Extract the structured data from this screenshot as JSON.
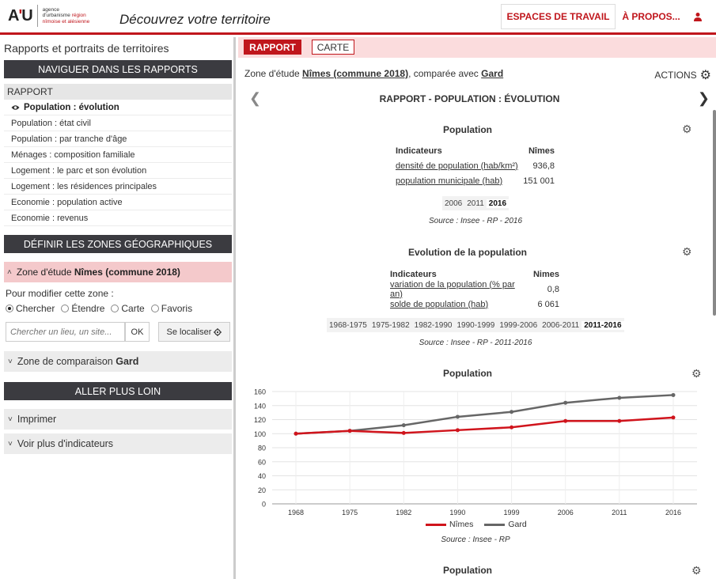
{
  "header": {
    "logo_mark_a": "A",
    "logo_mark_apos": "'",
    "logo_mark_u": "U",
    "logo_line1": "agence",
    "logo_line2_a": "d'urbanisme",
    "logo_line2_b": "région",
    "logo_line3": "nîmoise et alésienne",
    "app_title": "Découvrez votre territoire",
    "nav_espaces": "ESPACES DE TRAVAIL",
    "nav_apropos": "À PROPOS...",
    "user_icon": "user-icon",
    "accent": "#c0161c"
  },
  "sidebar": {
    "title": "Rapports et portraits de territoires",
    "nav_heading": "NAVIGUER DANS LES RAPPORTS",
    "rapport_head": "RAPPORT",
    "items": [
      {
        "label": "Population : évolution",
        "active": true
      },
      {
        "label": "Population : état civil"
      },
      {
        "label": "Population : par tranche d'âge"
      },
      {
        "label": "Ménages : composition familiale"
      },
      {
        "label": "Logement : le parc et son évolution"
      },
      {
        "label": "Logement : les résidences principales"
      },
      {
        "label": "Economie : population active"
      },
      {
        "label": "Economie : revenus"
      }
    ],
    "zones_heading": "DÉFINIR LES ZONES GÉOGRAPHIQUES",
    "zone_etude_prefix": "Zone d'étude",
    "zone_etude_name": "Nîmes (commune 2018)",
    "modif_label": "Pour modifier cette zone :",
    "radios": [
      "Chercher",
      "Étendre",
      "Carte",
      "Favoris"
    ],
    "search_placeholder": "Chercher un lieu, un site...",
    "ok_label": "OK",
    "locate_label": "Se localiser",
    "zone_comp_prefix": "Zone de comparaison",
    "zone_comp_name": "Gard",
    "aller_heading": "ALLER PLUS LOIN",
    "imprimer": "Imprimer",
    "voir_plus": "Voir plus d'indicateurs"
  },
  "main": {
    "tab_rapport": "RAPPORT",
    "tab_carte": "CARTE",
    "zone_prefix": "Zone d'étude",
    "zone_name": "Nîmes (commune 2018)",
    "zone_mid": ", comparée avec",
    "comp_name": "Gard",
    "actions": "ACTIONS",
    "report_title": "RAPPORT - POPULATION : ÉVOLUTION",
    "sec1": {
      "title": "Population",
      "col_ind": "Indicateurs",
      "col_val": "Nîmes",
      "rows": [
        {
          "label": "densité de population (hab/km²)",
          "value": "936,8"
        },
        {
          "label": "population municipale (hab)",
          "value": "151 001"
        }
      ],
      "years": [
        "2006",
        "2011",
        "2016"
      ],
      "selected_year": "2016",
      "source": "Source : Insee - RP - 2016"
    },
    "sec2": {
      "title": "Evolution de la population",
      "col_ind": "Indicateurs",
      "col_val": "Nimes",
      "rows": [
        {
          "label": "variation de la population (% par an)",
          "value": "0,8"
        },
        {
          "label": "solde de population (hab)",
          "value": "6 061"
        }
      ],
      "periods": [
        "1968-1975",
        "1975-1982",
        "1982-1990",
        "1990-1999",
        "1999-2006",
        "2006-2011",
        "2011-2016"
      ],
      "selected_period": "2011-2016",
      "source": "Source : Insee - RP - 2011-2016"
    },
    "sec3": {
      "title": "Population",
      "source": "Source : Insee - RP"
    },
    "sec4": {
      "title": "Population"
    }
  },
  "chart_data": {
    "type": "line",
    "categories": [
      "1968",
      "1975",
      "1982",
      "1990",
      "1999",
      "2006",
      "2011",
      "2016"
    ],
    "series": [
      {
        "name": "Nîmes",
        "color": "#d0141c",
        "values": [
          100,
          104,
          101,
          105,
          109,
          118,
          118,
          123
        ]
      },
      {
        "name": "Gard",
        "color": "#666666",
        "values": [
          100,
          104,
          112,
          124,
          131,
          144,
          151,
          155
        ]
      }
    ],
    "ylim": [
      0,
      160
    ],
    "yticks": [
      0,
      20,
      40,
      60,
      80,
      100,
      120,
      140,
      160
    ],
    "grid": true,
    "legend": "bottom"
  }
}
